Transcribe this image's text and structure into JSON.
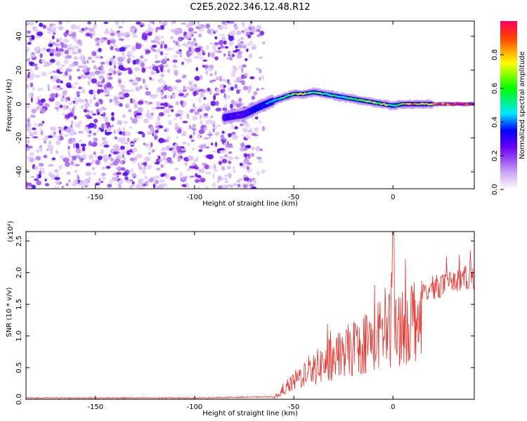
{
  "title": "C2E5.2022.346.12.48.R12",
  "chart_data": [
    {
      "type": "heatmap",
      "xlabel": "Height of straight line (km)",
      "ylabel": "Frequency (Hz)",
      "xlim": [
        -185,
        41
      ],
      "ylim": [
        -50,
        49
      ],
      "xticks": [
        -150,
        -100,
        -50,
        0
      ],
      "yticks": [
        -40,
        -20,
        0,
        20,
        40
      ],
      "colorbar": {
        "label": "Normalized spectral amplitude",
        "range": [
          0,
          1
        ],
        "ticks": [
          "0.0",
          "0.2",
          "0.4",
          "0.6",
          "0.8"
        ],
        "colormap": "white-purple-blue-cyan-green-yellow-red"
      },
      "ridge": {
        "x": [
          -85,
          -75,
          -68,
          -60,
          -55,
          -50,
          -45,
          -40,
          -35,
          -30,
          -25,
          -20,
          -15,
          -10,
          -5,
          0,
          5,
          10,
          15,
          20,
          30,
          41
        ],
        "y": [
          -8,
          -6,
          -2,
          2,
          4,
          6,
          6,
          7,
          6,
          5,
          4,
          3,
          2,
          1,
          0,
          -1,
          0,
          0,
          0,
          0,
          0,
          0
        ],
        "amplitude": [
          0.3,
          0.3,
          0.35,
          0.45,
          0.6,
          0.75,
          0.75,
          0.65,
          0.6,
          0.55,
          0.6,
          0.65,
          0.7,
          0.75,
          0.75,
          0.6,
          0.8,
          0.85,
          0.85,
          0.9,
          1.0,
          1.0
        ]
      },
      "noise_region": {
        "x_from": -185,
        "x_to": -65,
        "amplitude": [
          0.05,
          0.3
        ]
      }
    },
    {
      "type": "line",
      "xlabel": "Height of straight line (km)",
      "ylabel": "SNR (10 * v/v)",
      "yscale_label": "(x10⁴)",
      "xlim": [
        -185,
        41
      ],
      "ylim": [
        0,
        2.65
      ],
      "xticks": [
        -150,
        -100,
        -50,
        0
      ],
      "yticks": [
        "0.0",
        "0.5",
        "1.0",
        "1.5",
        "2.0",
        "2.5"
      ],
      "color": "#e8342e",
      "series": [
        {
          "x": [
            -185,
            -100,
            -60,
            -55,
            -50,
            -45,
            -40,
            -35,
            -30,
            -25,
            -20,
            -15,
            -10,
            -5,
            -1,
            0,
            1,
            5,
            10,
            15,
            20,
            25,
            30,
            35,
            41
          ],
          "y": [
            0.02,
            0.02,
            0.04,
            0.15,
            0.35,
            0.5,
            0.6,
            0.7,
            0.8,
            0.9,
            1.0,
            1.1,
            1.2,
            1.3,
            1.4,
            2.65,
            1.4,
            1.5,
            1.6,
            1.75,
            1.85,
            1.9,
            1.95,
            2.0,
            2.05
          ]
        }
      ]
    }
  ]
}
